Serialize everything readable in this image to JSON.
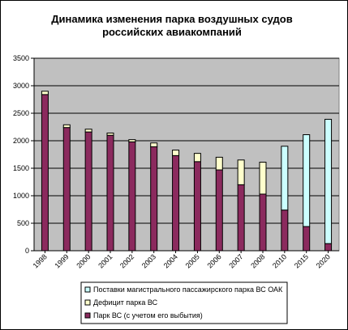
{
  "chart_data": {
    "type": "bar",
    "stacked": true,
    "title": [
      "Динамика изменения парка воздушных судов",
      "российских авиакомпаний"
    ],
    "xlabel": "",
    "ylabel": "",
    "ylim": [
      0,
      3500
    ],
    "yticks": [
      0,
      500,
      1000,
      1500,
      2000,
      2500,
      3000,
      3500
    ],
    "grid": true,
    "legend_position": "bottom-right",
    "categories": [
      "1998",
      "1999",
      "2000",
      "2001",
      "2002",
      "2003",
      "2004",
      "2005",
      "2006",
      "2007",
      "2008",
      "2010",
      "2015",
      "2020"
    ],
    "series": [
      {
        "name": "Парк ВС (с учетом его выбытия)",
        "color": "#8b2a5e",
        "values": [
          2840,
          2240,
          2160,
          2100,
          1980,
          1890,
          1730,
          1620,
          1470,
          1200,
          1030,
          740,
          440,
          130
        ]
      },
      {
        "name": "Дефицит парка ВС",
        "color": "#ffffcc",
        "values": [
          60,
          50,
          50,
          40,
          40,
          70,
          100,
          150,
          230,
          450,
          580,
          0,
          0,
          0
        ]
      },
      {
        "name": "Поставки магистрального пассажирского парка ВС ОАК",
        "color": "#ccffff",
        "values": [
          0,
          0,
          0,
          0,
          0,
          0,
          0,
          0,
          0,
          0,
          0,
          1160,
          1670,
          2260
        ]
      }
    ]
  }
}
